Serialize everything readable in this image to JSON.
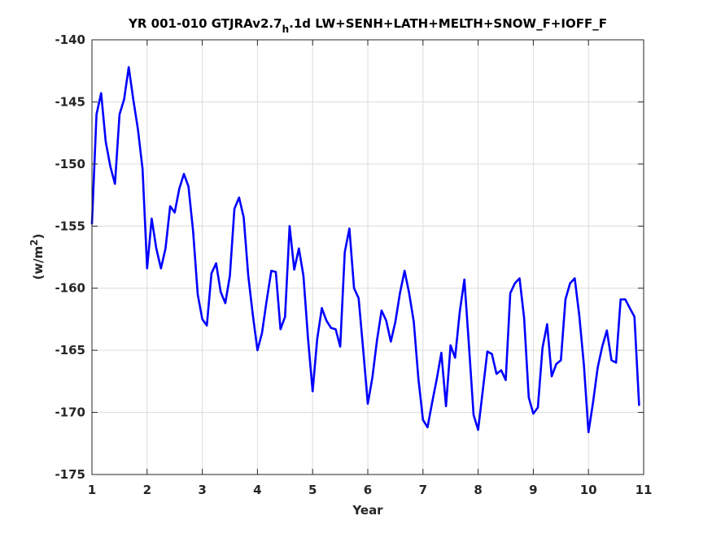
{
  "chart_data": {
    "type": "line",
    "title_main": "YR 001-010 GTJRAv2.7",
    "title_sub": "h",
    "title_rest": ".1d LW+SENH+LATH+MELTH+SNOW_F+IOFF_F",
    "xlabel": "Year",
    "ylabel_main": "(w/m",
    "ylabel_sup": "2",
    "ylabel_end": ")",
    "xlim": [
      1,
      11
    ],
    "ylim": [
      -175,
      -140
    ],
    "xticks": [
      1,
      2,
      3,
      4,
      5,
      6,
      7,
      8,
      9,
      10,
      11
    ],
    "yticks": [
      -175,
      -170,
      -165,
      -160,
      -155,
      -150,
      -145,
      -140
    ],
    "grid": true,
    "line_color": "#0000ff",
    "x": [
      1.0,
      1.083,
      1.167,
      1.25,
      1.333,
      1.417,
      1.5,
      1.583,
      1.667,
      1.75,
      1.833,
      1.917,
      2.0,
      2.083,
      2.167,
      2.25,
      2.333,
      2.417,
      2.5,
      2.583,
      2.667,
      2.75,
      2.833,
      2.917,
      3.0,
      3.083,
      3.167,
      3.25,
      3.333,
      3.417,
      3.5,
      3.583,
      3.667,
      3.75,
      3.833,
      3.917,
      4.0,
      4.083,
      4.167,
      4.25,
      4.333,
      4.417,
      4.5,
      4.583,
      4.667,
      4.75,
      4.833,
      4.917,
      5.0,
      5.083,
      5.167,
      5.25,
      5.333,
      5.417,
      5.5,
      5.583,
      5.667,
      5.75,
      5.833,
      5.917,
      6.0,
      6.083,
      6.167,
      6.25,
      6.333,
      6.417,
      6.5,
      6.583,
      6.667,
      6.75,
      6.833,
      6.917,
      7.0,
      7.083,
      7.167,
      7.25,
      7.333,
      7.417,
      7.5,
      7.583,
      7.667,
      7.75,
      7.833,
      7.917,
      8.0,
      8.083,
      8.167,
      8.25,
      8.333,
      8.417,
      8.5,
      8.583,
      8.667,
      8.75,
      8.833,
      8.917,
      9.0,
      9.083,
      9.167,
      9.25,
      9.333,
      9.417,
      9.5,
      9.583,
      9.667,
      9.75,
      9.833,
      9.917,
      10.0,
      10.083,
      10.167,
      10.25,
      10.333,
      10.417,
      10.5,
      10.583,
      10.667,
      10.75,
      10.833,
      10.917
    ],
    "values": [
      -154.8,
      -146.0,
      -144.3,
      -148.2,
      -150.2,
      -151.6,
      -146.0,
      -144.8,
      -142.2,
      -144.8,
      -147.2,
      -150.4,
      -158.4,
      -154.4,
      -156.8,
      -158.4,
      -156.8,
      -153.4,
      -153.9,
      -152.0,
      -150.8,
      -151.8,
      -155.4,
      -160.5,
      -162.5,
      -163.0,
      -158.8,
      -158.0,
      -160.3,
      -161.2,
      -159.0,
      -153.6,
      -152.7,
      -154.3,
      -159.0,
      -162.2,
      -165.0,
      -163.6,
      -161.0,
      -158.6,
      -158.7,
      -163.3,
      -162.3,
      -155.0,
      -158.5,
      -156.8,
      -159.0,
      -164.1,
      -168.3,
      -164.1,
      -161.6,
      -162.6,
      -163.2,
      -163.3,
      -164.7,
      -157.1,
      -155.2,
      -160.0,
      -160.8,
      -165.0,
      -169.3,
      -167.2,
      -164.2,
      -161.8,
      -162.6,
      -164.3,
      -162.7,
      -160.4,
      -158.6,
      -160.4,
      -162.7,
      -167.3,
      -170.6,
      -171.2,
      -169.2,
      -167.3,
      -165.2,
      -169.5,
      -164.6,
      -165.6,
      -161.9,
      -159.3,
      -164.6,
      -170.2,
      -171.4,
      -168.3,
      -165.1,
      -165.3,
      -166.9,
      -166.6,
      -167.4,
      -160.4,
      -159.6,
      -159.2,
      -162.4,
      -168.8,
      -170.1,
      -169.6,
      -164.8,
      -162.9,
      -167.1,
      -166.1,
      -165.8,
      -160.9,
      -159.6,
      -159.2,
      -162.2,
      -166.2,
      -171.6,
      -169.2,
      -166.4,
      -164.7,
      -163.4,
      -165.8,
      -166.0,
      -160.9,
      -160.9,
      -161.6,
      -162.3,
      -169.4
    ]
  }
}
